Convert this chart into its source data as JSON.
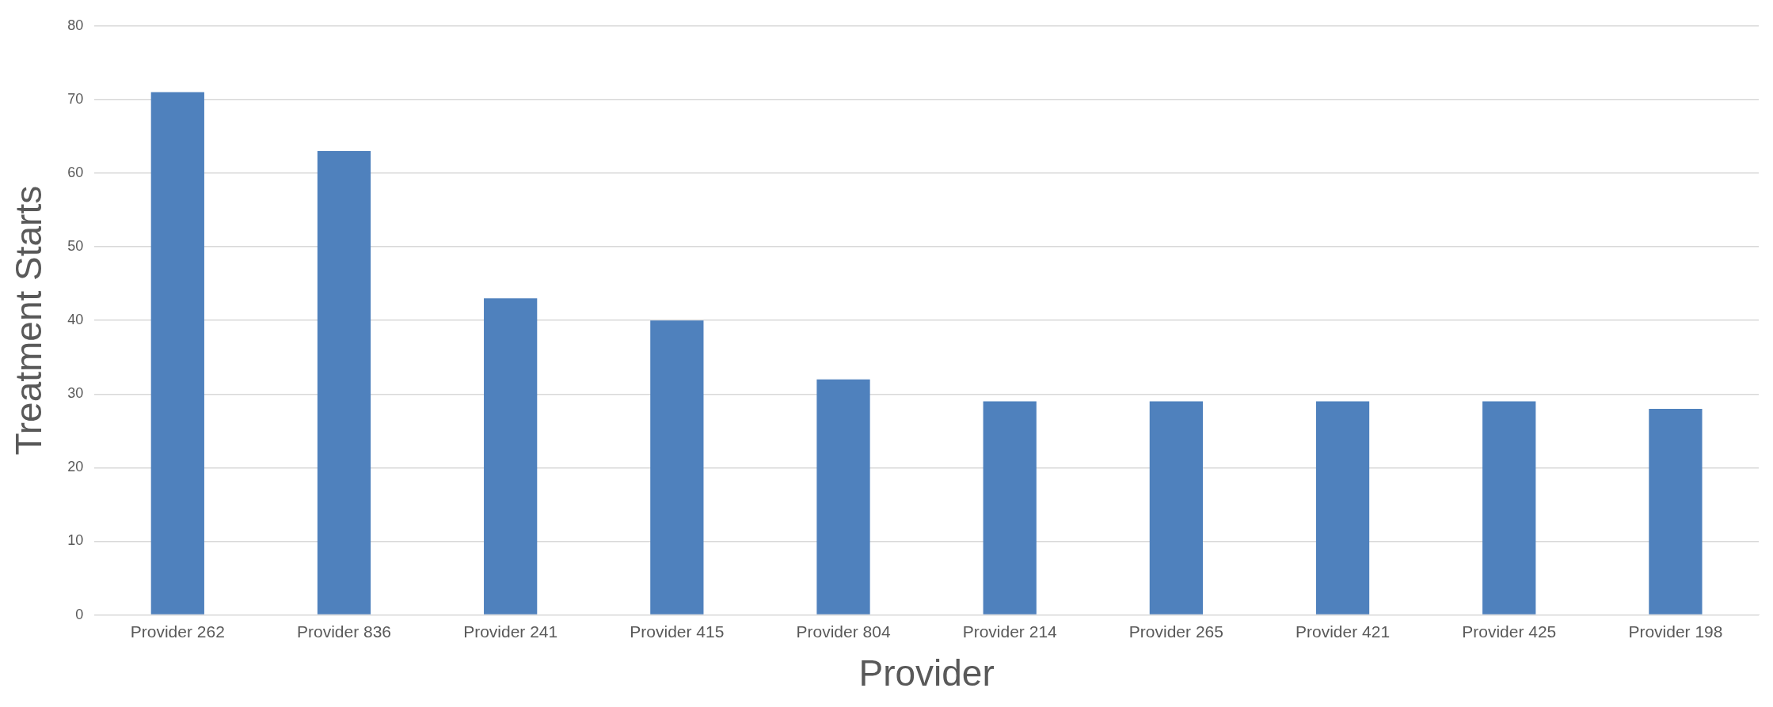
{
  "chart_data": {
    "type": "bar",
    "xlabel": "Provider",
    "ylabel": "Treatment Starts",
    "categories": [
      "Provider 262",
      "Provider 836",
      "Provider 241",
      "Provider 415",
      "Provider 804",
      "Provider 214",
      "Provider 265",
      "Provider 421",
      "Provider 425",
      "Provider 198"
    ],
    "values": [
      71,
      63,
      43,
      40,
      32,
      29,
      29,
      29,
      29,
      28
    ],
    "color": "#4f81bd",
    "ylim": [
      0,
      80
    ],
    "yticks": [
      0,
      10,
      20,
      30,
      40,
      50,
      60,
      70,
      80
    ],
    "grid": "y",
    "legend": false
  }
}
